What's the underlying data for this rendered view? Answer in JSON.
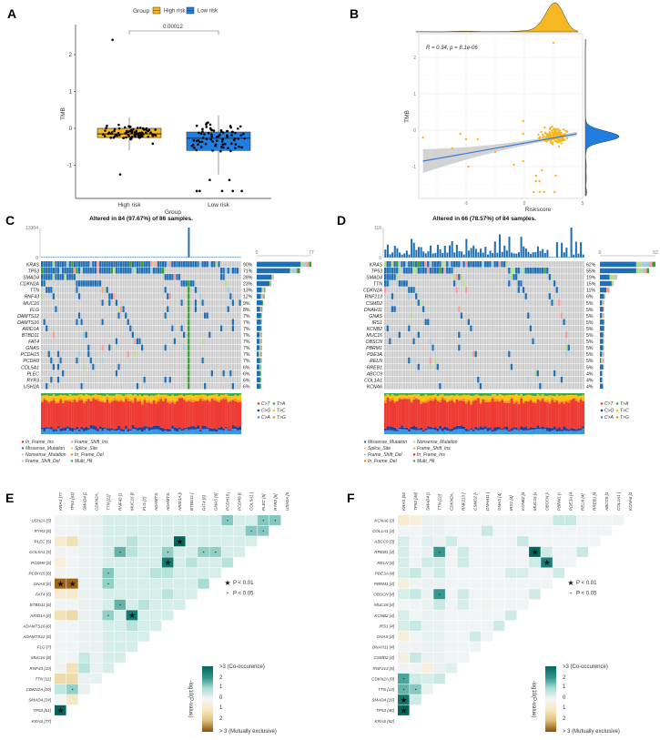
{
  "panel_labels": [
    "A",
    "B",
    "C",
    "D",
    "E",
    "F"
  ],
  "colors": {
    "high_risk": "#f5b822",
    "low_risk": "#1f7ee0",
    "regression": "#3a7bd5",
    "band": "#c8c8c8",
    "cell_bg": "#cccccc"
  },
  "chart_data": [
    {
      "type": "box",
      "legend_title": "Group",
      "categories": [
        "High risk",
        "Low risk"
      ],
      "xlabel": "Group",
      "ylabel": "TMB",
      "yticks": [
        "-1",
        "0",
        "1",
        "2"
      ],
      "ylim": [
        -1.9,
        2.6
      ],
      "pvalue": "0.00012",
      "legend_placement": "top",
      "boxes": [
        {
          "name": "High risk",
          "q1": -0.25,
          "median": -0.15,
          "q3": 0.0,
          "whisker_low": -0.6,
          "whisker_high": 0.3,
          "outliers": [
            2.4,
            -1.25
          ]
        },
        {
          "name": "Low risk",
          "q1": -0.6,
          "median": -0.27,
          "q3": -0.1,
          "whisker_low": -1.25,
          "whisker_high": 0.35,
          "outliers": [
            -1.4,
            -1.4,
            -1.7,
            -1.7,
            -1.7,
            -1.7,
            -1.7
          ]
        }
      ]
    },
    {
      "type": "scatter",
      "annotation": "R = 0.34, p = 8.1e-06",
      "xlabel": "Riskscore",
      "ylabel": "TMB",
      "xticks": [
        "-5",
        "0",
        "5"
      ],
      "yticks": [
        "-1",
        "0",
        "1",
        "2"
      ],
      "xlim": [
        -9.3,
        5
      ],
      "ylim": [
        -1.9,
        2.6
      ],
      "grid": true,
      "regression": {
        "x": [
          -8.7,
          4.5
        ],
        "y": [
          -0.85,
          -0.1
        ]
      },
      "marginal_top_color": "#f5b822",
      "marginal_right_color": "#1f7ee0",
      "outlier_points": [
        [
          -8.7,
          -0.2
        ],
        [
          -6.2,
          -0.5
        ],
        [
          -5.5,
          -0.1
        ],
        [
          -5,
          -0.25
        ],
        [
          -4,
          -0.25
        ],
        [
          -4.8,
          -1.0
        ],
        [
          -2.5,
          -0.6
        ],
        [
          -0.9,
          -0.95
        ],
        [
          -0.1,
          -0.85
        ],
        [
          -0.1,
          0.25
        ],
        [
          -0.1,
          -0.1
        ],
        [
          2.5,
          2.4
        ],
        [
          1,
          -1.25
        ],
        [
          1,
          -1.4
        ],
        [
          1.3,
          -1.4
        ],
        [
          0.8,
          -1.7
        ],
        [
          1.3,
          -1.7
        ],
        [
          1.7,
          -1.7
        ],
        [
          2.6,
          -1.7
        ],
        [
          1.5,
          -1.1
        ],
        [
          2.7,
          -1.25
        ]
      ]
    },
    {
      "type": "oncoplot",
      "title": "Altered in 84 (97.67%) of 86 samples.",
      "samples": 86,
      "top_axis": [
        "13304",
        "0"
      ],
      "top_max": 13304,
      "right_axis": [
        "0",
        "77"
      ],
      "right_max": 77,
      "genes": [
        "KRAS",
        "TP53",
        "SMAD4",
        "CDKN2A",
        "TTN",
        "RNF43",
        "MUC16",
        "FLG",
        "DAMTS12",
        "DAMTS16",
        "ARID1A",
        "BTBD11",
        "FAT4",
        "GNAS",
        "PCDH15",
        "PCDH9",
        "COL5A1",
        "PLEC",
        "RYR3",
        "USH2A"
      ],
      "percent": [
        "90%",
        "71%",
        "28%",
        "23%",
        "13%",
        "12%",
        "9%",
        "8%",
        "7%",
        "7%",
        "7%",
        "7%",
        "7%",
        "7%",
        "7%",
        "7%",
        "6%",
        "6%",
        "6%",
        "6%"
      ],
      "titv_legend": [
        "C>T",
        "T>A",
        "C>G",
        "T>C",
        "C>A",
        "T>G"
      ],
      "variant_legend": [
        "In_Frame_Ins",
        "Frame_Shift_Ins",
        "Missense_Mutation",
        "Splice_Site",
        "Nonsense_Mutation",
        "In_Frame_Del",
        "Frame_Shift_Del",
        "Multi_Hit"
      ]
    },
    {
      "type": "oncoplot",
      "title": "Altered in 66 (78.57%) of 84 samples.",
      "samples": 84,
      "top_axis": [
        "116",
        "0"
      ],
      "top_max": 116,
      "right_axis": [
        "0",
        "52"
      ],
      "right_max": 52,
      "genes": [
        "KRAS",
        "TP53",
        "SMAD4",
        "TTN",
        "CDKN2A",
        "RNF213",
        "CSMD2",
        "DNAH11",
        "GNAS",
        "IRS1",
        "KCNB2",
        "MUC16",
        "OBSCN",
        "PBRM1",
        "PDE3A",
        "RELN",
        "RREB1",
        "ABCC9",
        "COL1A1",
        "KCNA6"
      ],
      "percent": [
        "62%",
        "55%",
        "19%",
        "15%",
        "11%",
        "6%",
        "5%",
        "5%",
        "5%",
        "5%",
        "5%",
        "5%",
        "5%",
        "5%",
        "5%",
        "5%",
        "5%",
        "4%",
        "4%",
        "4%"
      ],
      "titv_legend": [
        "C>T",
        "T>A",
        "C>G",
        "T>C",
        "C>A",
        "T>G"
      ],
      "variant_legend": [
        "Missense_Mutation",
        "Nonsense_Mutation",
        "Splice_Site",
        "Frame_Shift_Ins",
        "Frame_Shift_Del",
        "In_Frame_Ins",
        "In_Frame_Del",
        "Multi_Hit"
      ]
    },
    {
      "type": "heatmap",
      "genes": [
        "KRAS [77]",
        "TP53 [61]",
        "SMAD4 [24]",
        "CDKN2A [20]",
        "TTN [11]",
        "RNF43 [10]",
        "MUC16 [8]",
        "FLG [7]",
        "ADAMTS12 [6]",
        "ADAMTS16 [6]",
        "ARID1A [6]",
        "BTBD11 [6]",
        "FAT4 [6]",
        "GNAS [6]",
        "PCDH15 [6]",
        "PCDH9 [6]",
        "COL5A1 [5]",
        "PLEC [5]",
        "RYR3 [5]",
        "USH2A [5]"
      ],
      "default_value": 0.4,
      "cells": [
        [
          1,
          0,
          3,
          "star"
        ],
        [
          13,
          0,
          -2.6,
          "star"
        ],
        [
          13,
          1,
          -2.6,
          "star"
        ],
        [
          10,
          6,
          2.6,
          "star"
        ],
        [
          17,
          10,
          3,
          "star"
        ],
        [
          15,
          9,
          2.6,
          "star"
        ],
        [
          3,
          0,
          0.7,
          ""
        ],
        [
          3,
          1,
          1.2,
          "dot"
        ],
        [
          19,
          14,
          1.3,
          "dot"
        ],
        [
          19,
          17,
          1.3,
          "dot"
        ],
        [
          19,
          18,
          1.3,
          "dot"
        ],
        [
          18,
          16,
          1.3,
          "dot"
        ],
        [
          18,
          17,
          1.3,
          "dot"
        ],
        [
          16,
          5,
          1.6,
          "dot"
        ],
        [
          16,
          9,
          1.2,
          "dot"
        ],
        [
          16,
          12,
          1.2,
          "dot"
        ],
        [
          16,
          13,
          1.2,
          "dot"
        ],
        [
          14,
          4,
          1.3,
          "dot"
        ],
        [
          13,
          4,
          1.2,
          "dot"
        ],
        [
          10,
          4,
          1.2,
          "dot"
        ],
        [
          11,
          5,
          1.6,
          "dot"
        ],
        [
          17,
          0,
          -0.3,
          ""
        ],
        [
          17,
          1,
          -0.5,
          ""
        ],
        [
          4,
          0,
          -0.6,
          ""
        ],
        [
          4,
          1,
          -0.6,
          ""
        ],
        [
          5,
          1,
          -0.5,
          ""
        ],
        [
          10,
          0,
          -0.5,
          ""
        ],
        [
          10,
          1,
          -0.6,
          ""
        ],
        [
          12,
          0,
          -0.3,
          ""
        ],
        [
          12,
          1,
          -0.3,
          ""
        ],
        [
          2,
          1,
          -0.4,
          ""
        ],
        [
          15,
          0,
          -0.2,
          ""
        ],
        [
          14,
          0,
          -0.1,
          ""
        ],
        [
          1,
          0,
          3,
          "star"
        ],
        [
          5,
          2,
          0.8,
          ""
        ],
        [
          6,
          2,
          0.6,
          ""
        ],
        [
          13,
          12,
          1.0,
          ""
        ],
        [
          12,
          9,
          0.8,
          ""
        ],
        [
          17,
          6,
          0.8,
          ""
        ],
        [
          16,
          6,
          0.8,
          ""
        ],
        [
          15,
          11,
          0.8,
          ""
        ],
        [
          15,
          14,
          0.8,
          ""
        ],
        [
          9,
          6,
          0.8,
          ""
        ],
        [
          14,
          9,
          0.8,
          ""
        ],
        [
          14,
          8,
          0.8,
          ""
        ],
        [
          11,
          7,
          0.8,
          ""
        ]
      ],
      "sig_legend": [
        "P < 0.01",
        "P < 0.05"
      ],
      "colorbar_title": "-log10(P-value)",
      "colorbar_labels": [
        ">3 (Co-occurence)",
        "2",
        "1",
        "0",
        "1",
        "2",
        "> 3 (Mutually exclusive)"
      ]
    },
    {
      "type": "heatmap",
      "genes": [
        "KRAS [52]",
        "TP53 [46]",
        "SMAD4 [16]",
        "TTN [13]",
        "CDKN2A [9]",
        "RNF213 [5]",
        "CSMD2 [4]",
        "DNAH11 [4]",
        "GNAS [4]",
        "IRS1 [4]",
        "KCNB2 [4]",
        "MUC16 [4]",
        "OBSCN [4]",
        "PBRM1 [4]",
        "PDE3A [4]",
        "RELN [4]",
        "RREB1 [4]",
        "ABCC9 [3]",
        "COL1A1 [3]",
        "KCNA6 [3]"
      ],
      "default_value": 0.05,
      "cells": [
        [
          1,
          0,
          3,
          "star"
        ],
        [
          2,
          0,
          2.7,
          "star"
        ],
        [
          3,
          0,
          1.6,
          "dot"
        ],
        [
          3,
          1,
          1.3,
          "dot"
        ],
        [
          4,
          0,
          1.8,
          "dot"
        ],
        [
          4,
          1,
          0.5,
          ""
        ],
        [
          4,
          2,
          0.4,
          ""
        ],
        [
          4,
          3,
          0.6,
          ""
        ],
        [
          2,
          1,
          0.5,
          ""
        ],
        [
          16,
          11,
          3,
          "star"
        ],
        [
          15,
          12,
          2.5,
          "star"
        ],
        [
          16,
          3,
          2.0,
          "dot"
        ],
        [
          12,
          3,
          2.0,
          "dot"
        ],
        [
          19,
          13,
          0.6,
          ""
        ],
        [
          19,
          14,
          0.6,
          ""
        ],
        [
          19,
          0,
          -0.3,
          ""
        ],
        [
          19,
          1,
          -0.2,
          ""
        ],
        [
          18,
          7,
          0.6,
          ""
        ],
        [
          17,
          10,
          0.6,
          ""
        ],
        [
          17,
          0,
          0.4,
          ""
        ],
        [
          17,
          2,
          0.3,
          ""
        ],
        [
          17,
          4,
          0.5,
          ""
        ],
        [
          16,
          0,
          0.4,
          ""
        ],
        [
          16,
          5,
          0.5,
          ""
        ],
        [
          16,
          12,
          0.5,
          ""
        ],
        [
          16,
          15,
          0.6,
          ""
        ],
        [
          15,
          0,
          0.4,
          ""
        ],
        [
          15,
          2,
          0.5,
          ""
        ],
        [
          15,
          3,
          0.5,
          ""
        ],
        [
          15,
          5,
          0.5,
          ""
        ],
        [
          15,
          11,
          0.5,
          ""
        ],
        [
          14,
          0,
          0.4,
          ""
        ],
        [
          14,
          1,
          0.6,
          ""
        ],
        [
          14,
          3,
          0.5,
          ""
        ],
        [
          14,
          9,
          0.4,
          ""
        ],
        [
          14,
          10,
          0.4,
          ""
        ],
        [
          14,
          13,
          0.5,
          ""
        ],
        [
          13,
          0,
          -0.2,
          ""
        ],
        [
          12,
          0,
          0.4,
          ""
        ],
        [
          12,
          1,
          0.6,
          ""
        ],
        [
          12,
          5,
          0.5,
          ""
        ],
        [
          12,
          11,
          0.5,
          ""
        ],
        [
          11,
          3,
          0.6,
          ""
        ],
        [
          11,
          5,
          0.4,
          ""
        ],
        [
          10,
          0,
          0.4,
          ""
        ],
        [
          10,
          9,
          0.5,
          ""
        ],
        [
          9,
          0,
          0.4,
          ""
        ],
        [
          9,
          1,
          0.6,
          ""
        ],
        [
          9,
          8,
          0.5,
          ""
        ],
        [
          8,
          0,
          -0.2,
          ""
        ],
        [
          8,
          2,
          0.2,
          ""
        ],
        [
          8,
          3,
          0.2,
          ""
        ],
        [
          8,
          6,
          0.5,
          ""
        ],
        [
          6,
          0,
          -0.2,
          ""
        ],
        [
          6,
          1,
          0.6,
          ""
        ],
        [
          5,
          2,
          -0.2,
          ""
        ],
        [
          5,
          4,
          0.3,
          ""
        ]
      ],
      "sig_legend": [
        "P < 0.01",
        "P < 0.05"
      ],
      "colorbar_title": "-log10(P-value)",
      "colorbar_labels": [
        ">3 (Co-occurence)",
        "2",
        "1",
        "0",
        "1",
        "2",
        "> 3 (Mutually exclusive)"
      ]
    }
  ]
}
